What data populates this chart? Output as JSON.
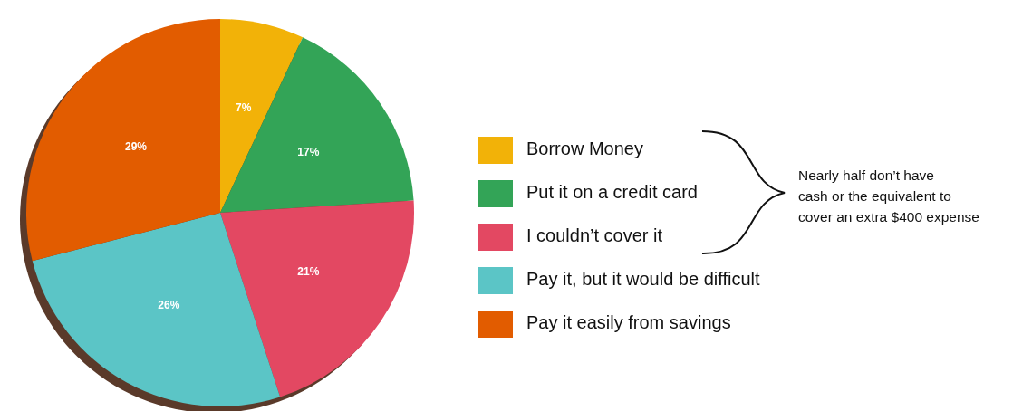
{
  "chart_data": {
    "type": "pie",
    "categories": [
      "Borrow Money",
      "Put it on a credit card",
      "I couldn’t cover it",
      "Pay it, but it would be difficult",
      "Pay it easily from savings"
    ],
    "values": [
      7,
      17,
      21,
      26,
      29
    ],
    "value_labels": [
      "7%",
      "17%",
      "21%",
      "26%",
      "29%"
    ],
    "colors": [
      "#f2b208",
      "#33a457",
      "#e34862",
      "#5bc5c6",
      "#e25c00"
    ],
    "legend": "right",
    "annotations": [
      "Nearly half don’t have\ncash or the equivalent to\ncover an extra $400 expense"
    ]
  }
}
